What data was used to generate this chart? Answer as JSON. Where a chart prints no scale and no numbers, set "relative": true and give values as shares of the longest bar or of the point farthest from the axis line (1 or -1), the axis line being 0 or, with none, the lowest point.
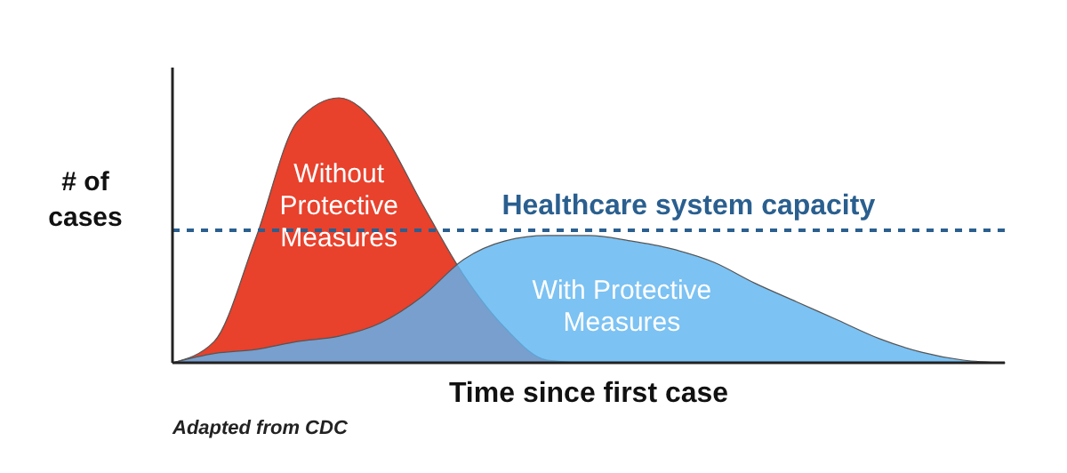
{
  "chart_data": {
    "type": "area",
    "relative": true,
    "ylabel": "# of cases",
    "xlabel": "Time since first case",
    "categories": [
      null,
      null,
      null,
      null,
      null,
      null,
      null,
      null,
      null,
      null,
      null,
      null,
      null,
      null,
      null,
      null,
      null,
      null,
      null,
      null,
      null
    ],
    "series": [
      {
        "name": "Without Protective Measures",
        "color": "#e8412c",
        "values": [
          0,
          0.08,
          0.47,
          0.91,
          1,
          0.88,
          0.6,
          0.33,
          0.13,
          0.01,
          0,
          0,
          0,
          0,
          0,
          0,
          0,
          0,
          0,
          0,
          0
        ]
      },
      {
        "name": "With Protective Measures",
        "color": "#5fb4f0",
        "values": [
          0,
          0.035,
          0.05,
          0.08,
          0.1,
          0.15,
          0.25,
          0.39,
          0.46,
          0.48,
          0.48,
          0.46,
          0.43,
          0.38,
          0.3,
          0.23,
          0.16,
          0.09,
          0.04,
          0.01,
          0
        ]
      }
    ],
    "ref_lines": [
      {
        "axis": "y",
        "value": 0.5,
        "label": "Healthcare system capacity",
        "color": "#2a5f8f",
        "line_style": "dashed"
      }
    ],
    "annotations": [
      "Adapted from CDC"
    ]
  }
}
